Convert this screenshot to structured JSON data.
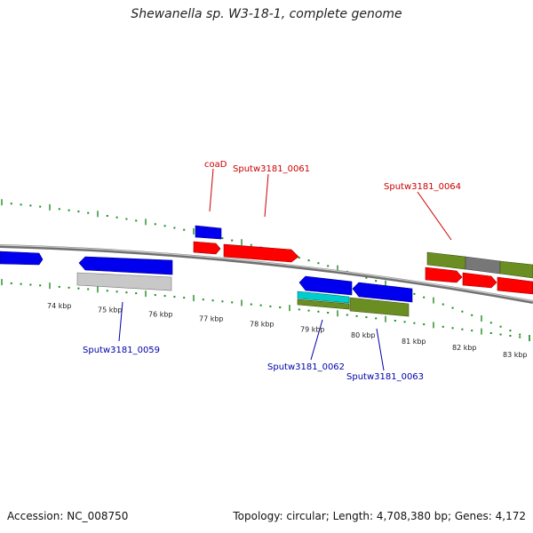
{
  "title": "Shewanella sp. W3-18-1, complete genome",
  "footer": {
    "accession": "Accession: NC_008750",
    "summary": "Topology: circular; Length: 4,708,380 bp; Genes: 4,172"
  },
  "colors": {
    "forward_gene": "#ff0000",
    "reverse_gene": "#0000ee",
    "cds_bar": "#6b8e23",
    "rna_bar": "#00cccc",
    "gray_bar": "#c8c8c8",
    "dark_gray_bar": "#777777",
    "ticks": "#1f8a1f",
    "forward_label": "#cc0000",
    "reverse_label": "#0000aa"
  },
  "scale_labels": [
    "74 kbp",
    "75 kbp",
    "76 kbp",
    "77 kbp",
    "78 kbp",
    "79 kbp",
    "80 kbp",
    "81 kbp",
    "82 kbp",
    "83 kbp"
  ],
  "labels": {
    "coaD": "coaD",
    "g0061": "Sputw3181_0061",
    "g0064": "Sputw3181_0064",
    "g0059": "Sputw3181_0059",
    "g0062": "Sputw3181_0062",
    "g0063": "Sputw3181_0063"
  }
}
